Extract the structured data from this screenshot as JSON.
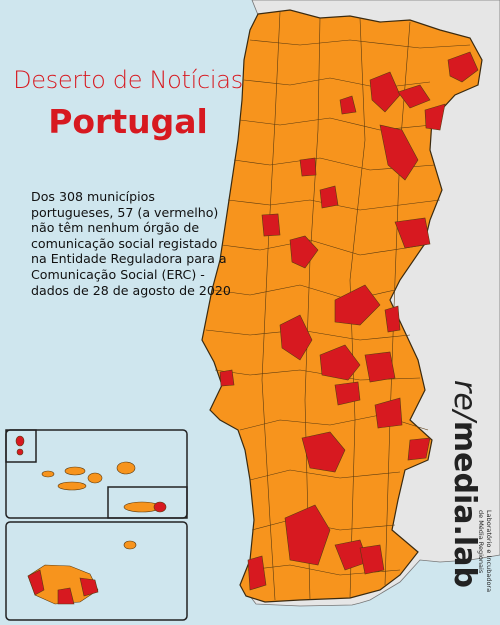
{
  "title": "Deserto de Notícias",
  "subtitle": "Portugal",
  "description": "Dos 308 municípios portugueses, 57 (a vermelho) não têm nenhum órgão de comunicação social registado na Entidade Reguladora para a Comunicação Social (ERC) - dados de 28 de agosto de 2020",
  "logo": {
    "prefix": "re/",
    "name": "media.lab",
    "tagline": [
      "Laboratório e Incubadora",
      "de Média Regionais"
    ]
  }
}
